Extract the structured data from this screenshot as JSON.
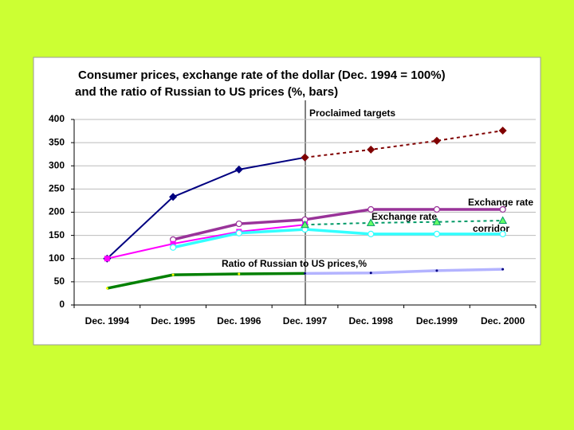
{
  "chart_data": {
    "type": "line",
    "title": [
      "Consumer prices, exchange rate of the dollar (Dec. 1994 = 100%)",
      "and the ratio of Russian to US prices (%, bars)"
    ],
    "categories": [
      "Dec. 1994",
      "Dec. 1995",
      "Dec. 1996",
      "Dec. 1997",
      "Dec. 1998",
      "Dec.1999",
      "Dec. 2000"
    ],
    "ylim": [
      0,
      400
    ],
    "yticks": [
      0,
      50,
      100,
      150,
      200,
      250,
      300,
      350,
      400
    ],
    "grid": true,
    "annotations": [
      "Proclaimed targets",
      "Exchange rate",
      "Exchange rate",
      "corridor",
      "Ratio of Russian to US prices,%"
    ],
    "series": [
      {
        "color": "#000080",
        "marker": "diamond",
        "dash": false,
        "thick": false,
        "values": [
          100,
          233,
          292,
          318,
          null,
          null,
          null
        ]
      },
      {
        "color": "#800000",
        "marker": "diamond",
        "dash": true,
        "thick": false,
        "values": [
          null,
          null,
          null,
          318,
          335,
          354,
          376
        ]
      },
      {
        "color": "#993399",
        "marker": "circle",
        "dash": false,
        "thick": true,
        "values": [
          null,
          141,
          175,
          184,
          206,
          206,
          206
        ]
      },
      {
        "color": "#ff00ff",
        "marker": "square",
        "dash": false,
        "thick": false,
        "values": [
          100,
          132,
          158,
          173,
          null,
          null,
          null
        ]
      },
      {
        "color": "#33ffff",
        "marker": "circle",
        "dash": false,
        "thick": true,
        "values": [
          null,
          124,
          155,
          163,
          153,
          153,
          153
        ]
      },
      {
        "color": "#009966",
        "marker": "triangle",
        "dash": true,
        "thick": false,
        "values": [
          null,
          null,
          null,
          173,
          177,
          179,
          182
        ]
      },
      {
        "color": "#008000",
        "marker": "dot",
        "dash": false,
        "thick": true,
        "values": [
          36,
          65,
          67,
          68,
          null,
          null,
          null
        ]
      },
      {
        "color": "#b3b3ff",
        "marker": "dot",
        "dash": false,
        "thick": true,
        "values": [
          null,
          null,
          null,
          68,
          69,
          74,
          77
        ]
      }
    ]
  }
}
